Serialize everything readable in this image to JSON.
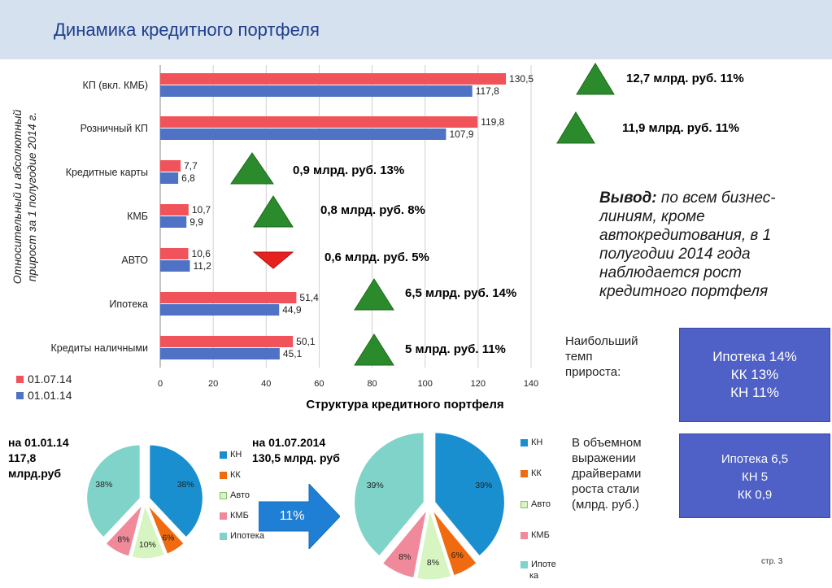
{
  "header": {
    "title": "Динамика кредитного портфеля"
  },
  "chart_data": [
    {
      "type": "bar",
      "title": "Структура кредитного портфеля",
      "ylabel": "Относительный и абсолютный прирост за 1 полугодие 2014 г.",
      "categories": [
        "КП (вкл. КМБ)",
        "Розничный КП",
        "Кредитные карты",
        "КМБ",
        "АВТО",
        "Ипотека",
        "Кредиты наличными"
      ],
      "series": [
        {
          "name": "01.07.14",
          "color": "#f0535a",
          "values": [
            130.5,
            119.8,
            7.7,
            10.7,
            10.6,
            51.4,
            50.1
          ],
          "labels": [
            "130,5",
            "119,8",
            "7,7",
            "10,7",
            "10,6",
            "51,4",
            "50,1"
          ]
        },
        {
          "name": "01.01.14",
          "color": "#4f72c4",
          "values": [
            117.8,
            107.9,
            6.8,
            9.9,
            11.2,
            44.9,
            45.1
          ],
          "labels": [
            "117,8",
            "107,9",
            "6,8",
            "9,9",
            "11,2",
            "44,9",
            "45,1"
          ]
        }
      ],
      "xlim": [
        0,
        140
      ],
      "xticks": [
        0,
        20,
        40,
        60,
        80,
        100,
        120,
        140
      ],
      "grid": true,
      "legend": "bottom-left",
      "orientation": "horizontal",
      "annotations": [
        {
          "text": "12,7 млрд. руб. 11%",
          "direction": "up"
        },
        {
          "text": "11,9 млрд. руб. 11%",
          "direction": "up"
        },
        {
          "text": "0,9 млрд. руб. 13%",
          "direction": "up"
        },
        {
          "text": "0,8 млрд. руб.  8%",
          "direction": "up"
        },
        {
          "text": "0,6 млрд. руб. 5%",
          "direction": "down"
        },
        {
          "text": "6,5 млрд. руб. 14%",
          "direction": "up"
        },
        {
          "text": "5 млрд. руб. 11%",
          "direction": "up"
        }
      ]
    },
    {
      "type": "pie",
      "title": [
        "на 01.01.14",
        "117,8",
        "млрд.руб"
      ],
      "categories": [
        "КН",
        "КК",
        "Авто",
        "КМБ",
        "Ипотека"
      ],
      "values": [
        38,
        6,
        10,
        8,
        38
      ],
      "labels": [
        "38%",
        "6%",
        "10%",
        "8%",
        "38%"
      ],
      "colors": [
        "#1a8fd0",
        "#f06a0f",
        "#d6f5c0",
        "#f08a9a",
        "#7fd3c9"
      ]
    },
    {
      "type": "pie",
      "title": [
        "на 01.07.2014",
        "130,5 млрд. руб"
      ],
      "categories": [
        "КН",
        "КК",
        "Авто",
        "КМБ",
        "Ипотека"
      ],
      "legend_labels": [
        "КН",
        "КК",
        "Авто",
        "КМБ",
        "Ипоте",
        "ка"
      ],
      "values": [
        39,
        6,
        8,
        8,
        39
      ],
      "labels": [
        "39%",
        "6%",
        "8%",
        "8%",
        "39%"
      ],
      "colors": [
        "#1a8fd0",
        "#f06a0f",
        "#d6f5c0",
        "#f08a9a",
        "#7fd3c9"
      ]
    }
  ],
  "arrow": {
    "label": "11%"
  },
  "conclusion": {
    "lead": "Вывод:",
    "text": " по всем бизнес-линиям, кроме автокредитования, в 1 полугодии 2014 года наблюдается рост кредитного портфеля"
  },
  "growth_rate": {
    "label": [
      "Наибольший",
      "темп",
      "прироста:"
    ],
    "box": [
      "Ипотека 14%",
      "КК 13%",
      "КН 11%"
    ]
  },
  "drivers": {
    "label": [
      "В объемном",
      "выражении",
      "драйверами",
      "роста стали",
      "(млрд. руб.)"
    ],
    "box": [
      "Ипотека 6,5",
      "КН 5",
      "КК 0,9"
    ]
  },
  "footer": {
    "page": "стр. 3"
  },
  "colors": {
    "triangle_up": "#2b8a2b",
    "triangle_down": "#e82020",
    "box": "#4f60c6",
    "header_bg": "#d5e1ef",
    "title": "#1f3f8c"
  }
}
